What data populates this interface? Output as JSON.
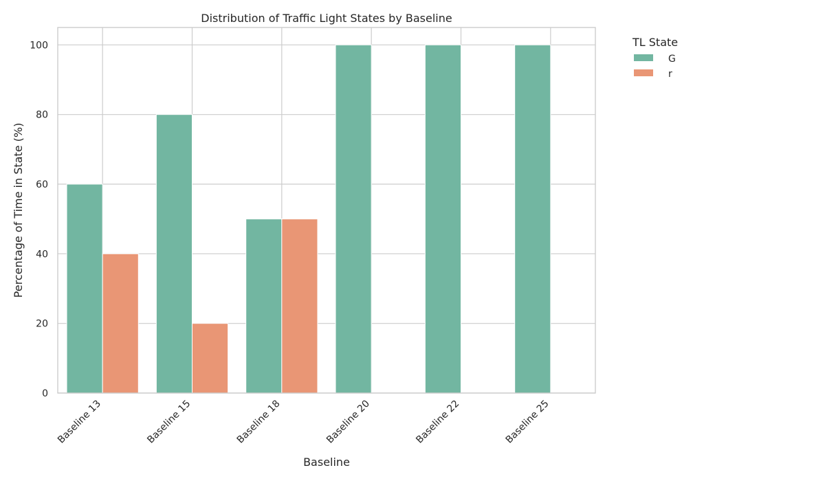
{
  "chart_data": {
    "type": "bar",
    "title": "Distribution of Traffic Light States by Baseline",
    "xlabel": "Baseline",
    "ylabel": "Percentage of Time in State (%)",
    "categories": [
      "Baseline 13",
      "Baseline 15",
      "Baseline 18",
      "Baseline 20",
      "Baseline 22",
      "Baseline 25"
    ],
    "series": [
      {
        "name": "G",
        "values": [
          60,
          80,
          50,
          100,
          100,
          100
        ],
        "color": "#72b6a1"
      },
      {
        "name": "r",
        "values": [
          40,
          20,
          50,
          0,
          0,
          0
        ],
        "color": "#e99675"
      }
    ],
    "ylim": [
      0,
      105
    ],
    "yticks": [
      0,
      20,
      40,
      60,
      80,
      100
    ],
    "grid": true,
    "legend": {
      "title": "TL State",
      "position": "outside-right"
    }
  }
}
